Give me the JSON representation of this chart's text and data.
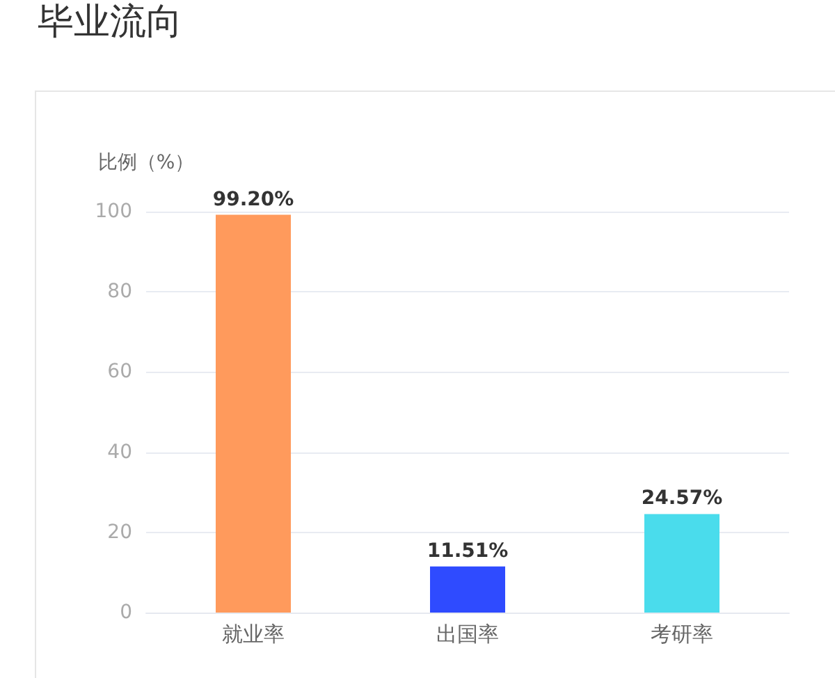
{
  "chart_data": {
    "type": "bar",
    "title": "毕业流向",
    "ylabel": "比例（%）",
    "categories": [
      "就业率",
      "出国率",
      "考研率"
    ],
    "values": [
      99.2,
      11.51,
      24.57
    ],
    "colors": [
      "#ff9a5c",
      "#2f4bff",
      "#4adcec"
    ],
    "value_labels": [
      "99.20%",
      "11.51%",
      "24.57%"
    ],
    "ylim": [
      0,
      100
    ],
    "yticks": [
      0,
      20,
      40,
      60,
      80,
      100
    ],
    "grid": "y"
  }
}
